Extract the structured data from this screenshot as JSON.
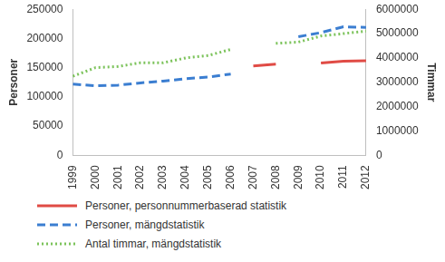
{
  "chart_data": {
    "type": "line",
    "categories": [
      "1999",
      "2000",
      "2001",
      "2002",
      "2003",
      "2004",
      "2005",
      "2006",
      "2007",
      "2008",
      "2009",
      "2010",
      "2011",
      "2012"
    ],
    "series": [
      {
        "name": "Personer, personnummerbaserad statistik",
        "color": "#e04b45",
        "line_style": "solid",
        "axis": "y",
        "values": [
          null,
          null,
          null,
          null,
          null,
          null,
          null,
          null,
          153000,
          156000,
          null,
          158000,
          161000,
          162000
        ]
      },
      {
        "name": "Personer, mängdstatistik",
        "color": "#3b7ed1",
        "line_style": "dashed",
        "axis": "y",
        "values": [
          122000,
          119000,
          120000,
          124000,
          127000,
          131000,
          134000,
          139000,
          null,
          null,
          203000,
          210000,
          220000,
          219000
        ]
      },
      {
        "name": "Antal timmar, mängdstatistik",
        "color": "#7cc35b",
        "line_style": "dotted",
        "axis": "y2",
        "values": [
          3250000,
          3600000,
          3650000,
          3800000,
          3800000,
          4000000,
          4100000,
          4350000,
          null,
          4600000,
          4650000,
          4900000,
          5000000,
          5100000
        ]
      }
    ],
    "ylabel": "Personer",
    "y2label": "Timmar",
    "ylim": [
      0,
      250000
    ],
    "yticks": [
      0,
      50000,
      100000,
      150000,
      200000,
      250000
    ],
    "y2lim": [
      0,
      6000000
    ],
    "y2ticks": [
      0,
      1000000,
      2000000,
      3000000,
      4000000,
      5000000,
      6000000
    ],
    "grid": false,
    "legend": "bottom"
  }
}
